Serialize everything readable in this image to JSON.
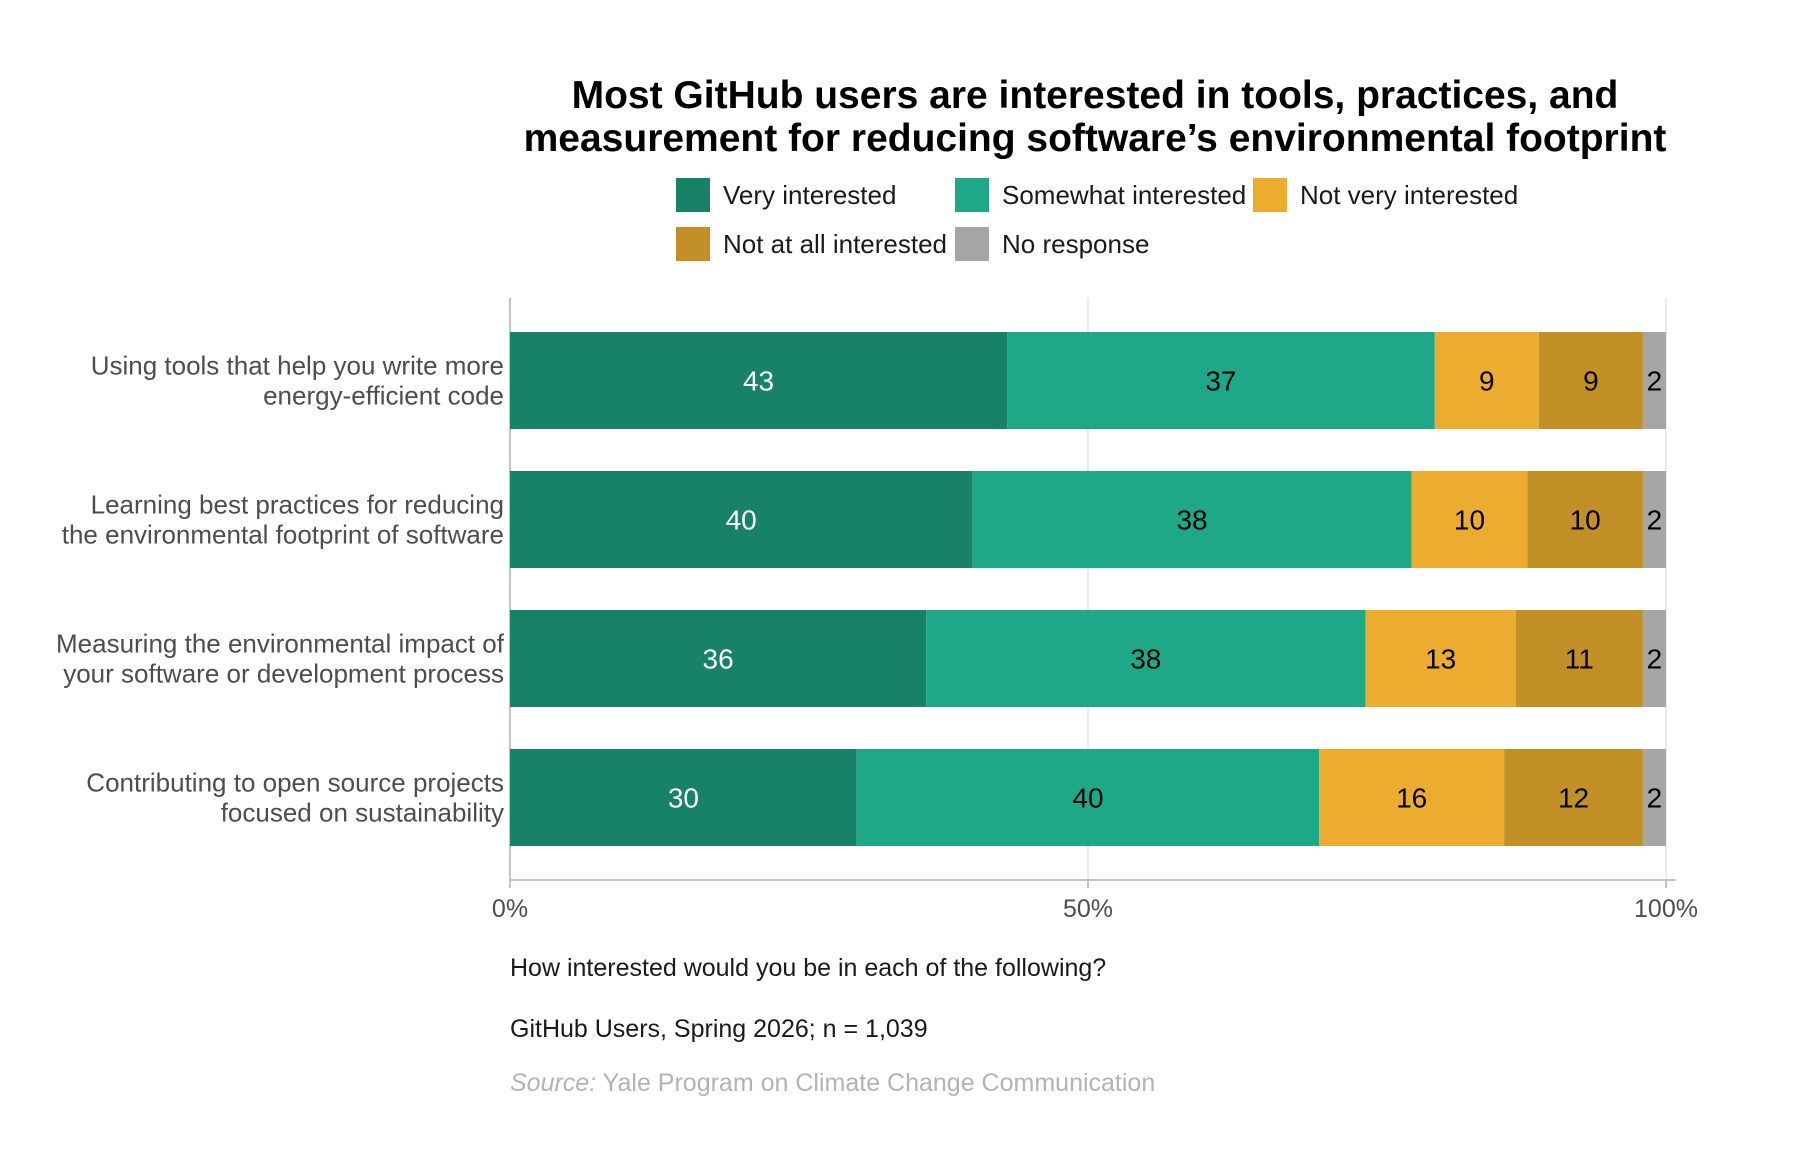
{
  "chart_data": {
    "type": "bar",
    "orientation": "horizontal",
    "stacked": true,
    "title_lines": [
      "Most GitHub users are interested in tools, practices, and",
      "measurement for reducing software’s environmental footprint"
    ],
    "categories": [
      [
        "Using tools that help you write more",
        "energy-efficient code"
      ],
      [
        "Learning best practices for reducing",
        "the environmental footprint of software"
      ],
      [
        "Measuring the environmental impact of",
        "your software or development process"
      ],
      [
        "Contributing to open source projects",
        "focused on sustainability"
      ]
    ],
    "series": [
      {
        "name": "Very interested",
        "color": "#178268",
        "label_color": "#ffffff",
        "values": [
          43,
          40,
          36,
          30
        ]
      },
      {
        "name": "Somewhat interested",
        "color": "#1ea887",
        "label_color": "#000000",
        "values": [
          37,
          38,
          38,
          40
        ]
      },
      {
        "name": "Not very interested",
        "color": "#ebac2f",
        "label_color": "#000000",
        "values": [
          9,
          10,
          13,
          16
        ]
      },
      {
        "name": "Not at all interested",
        "color": "#c38f27",
        "label_color": "#000000",
        "values": [
          9,
          10,
          11,
          12
        ]
      },
      {
        "name": "No response",
        "color": "#a6a6a6",
        "label_color": "#000000",
        "values": [
          2,
          2,
          2,
          2
        ]
      }
    ],
    "xlim": [
      0,
      100
    ],
    "x_ticks": [
      "0%",
      "50%",
      "100%"
    ],
    "grid": true,
    "legend_position": "top",
    "question": "How interested would you be in each of the following?",
    "sample": "GitHub Users, Spring 2026; n = 1,039",
    "source_label": "Source:",
    "source_text": " Yale Program on Climate Change Communication"
  }
}
